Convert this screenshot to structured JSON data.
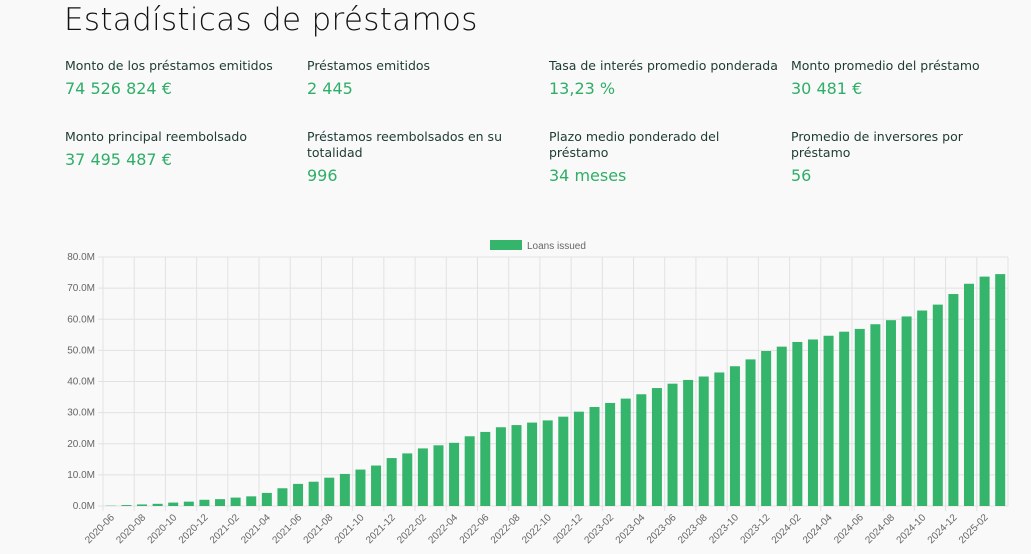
{
  "page_title": "Estadísticas de préstamos",
  "stats": [
    {
      "label": "Monto de los préstamos emitidos",
      "value": "74 526 824 €"
    },
    {
      "label": "Préstamos emitidos",
      "value": "2 445"
    },
    {
      "label": "Tasa de interés promedio ponderada",
      "value": "13,23 %"
    },
    {
      "label": "Monto promedio del préstamo",
      "value": "30 481 €"
    },
    {
      "label": "Monto principal reembolsado",
      "value": "37 495 487 €"
    },
    {
      "label": "Préstamos reembolsados en su totalidad",
      "value": "996"
    },
    {
      "label": "Plazo medio ponderado del préstamo",
      "value": "34 meses"
    },
    {
      "label": "Promedio de inversores por préstamo",
      "value": "56"
    }
  ],
  "colors": {
    "bar": "#35b46b",
    "value_text": "#2fae68",
    "label_text": "#1d3b33"
  },
  "chart_data": {
    "type": "bar",
    "legend_position": "top",
    "grid": true,
    "ylim": [
      0,
      80
    ],
    "y_ticks": [
      "0.0M",
      "10.0M",
      "20.0M",
      "30.0M",
      "40.0M",
      "50.0M",
      "60.0M",
      "70.0M",
      "80.0M"
    ],
    "series": [
      {
        "name": "Loans issued",
        "values": [
          0.1,
          0.3,
          0.5,
          0.7,
          1.1,
          1.4,
          2.0,
          2.2,
          2.7,
          3.1,
          4.2,
          5.7,
          7.1,
          7.8,
          9.1,
          10.3,
          11.7,
          13.0,
          15.4,
          16.9,
          18.5,
          19.5,
          20.3,
          22.4,
          23.8,
          25.3,
          26.0,
          26.8,
          27.5,
          28.7,
          30.3,
          31.8,
          33.1,
          34.5,
          35.9,
          37.9,
          39.3,
          40.5,
          41.6,
          42.9,
          44.9,
          47.1,
          49.8,
          51.2,
          52.7,
          53.5,
          54.7,
          56.0,
          56.9,
          58.4,
          59.7,
          60.9,
          62.8,
          64.7,
          68.1,
          71.4,
          73.7,
          74.5
        ]
      }
    ],
    "categories": [
      "2020-06",
      "2020-07",
      "2020-08",
      "2020-09",
      "2020-10",
      "2020-11",
      "2020-12",
      "2021-01",
      "2021-02",
      "2021-03",
      "2021-04",
      "2021-05",
      "2021-06",
      "2021-07",
      "2021-08",
      "2021-09",
      "2021-10",
      "2021-11",
      "2021-12",
      "2022-01",
      "2022-02",
      "2022-03",
      "2022-04",
      "2022-05",
      "2022-06",
      "2022-07",
      "2022-08",
      "2022-09",
      "2022-10",
      "2022-11",
      "2022-12",
      "2023-01",
      "2023-02",
      "2023-03",
      "2023-04",
      "2023-05",
      "2023-06",
      "2023-07",
      "2023-08",
      "2023-09",
      "2023-10",
      "2023-11",
      "2023-12",
      "2024-01",
      "2024-02",
      "2024-03",
      "2024-04",
      "2024-05",
      "2024-06",
      "2024-07",
      "2024-08",
      "2024-09",
      "2024-10",
      "2024-11",
      "2024-12",
      "2025-01",
      "2025-02",
      "2025-03"
    ],
    "x_tick_labels": [
      "2020-06",
      "2020-08",
      "2020-10",
      "2020-12",
      "2021-02",
      "2021-04",
      "2021-06",
      "2021-08",
      "2021-10",
      "2021-12",
      "2022-02",
      "2022-04",
      "2022-06",
      "2022-08",
      "2022-10",
      "2022-12",
      "2023-02",
      "2023-04",
      "2023-06",
      "2023-08",
      "2023-10",
      "2023-12",
      "2024-02",
      "2024-04",
      "2024-06",
      "2024-08",
      "2024-10",
      "2024-12",
      "2025-02"
    ]
  }
}
